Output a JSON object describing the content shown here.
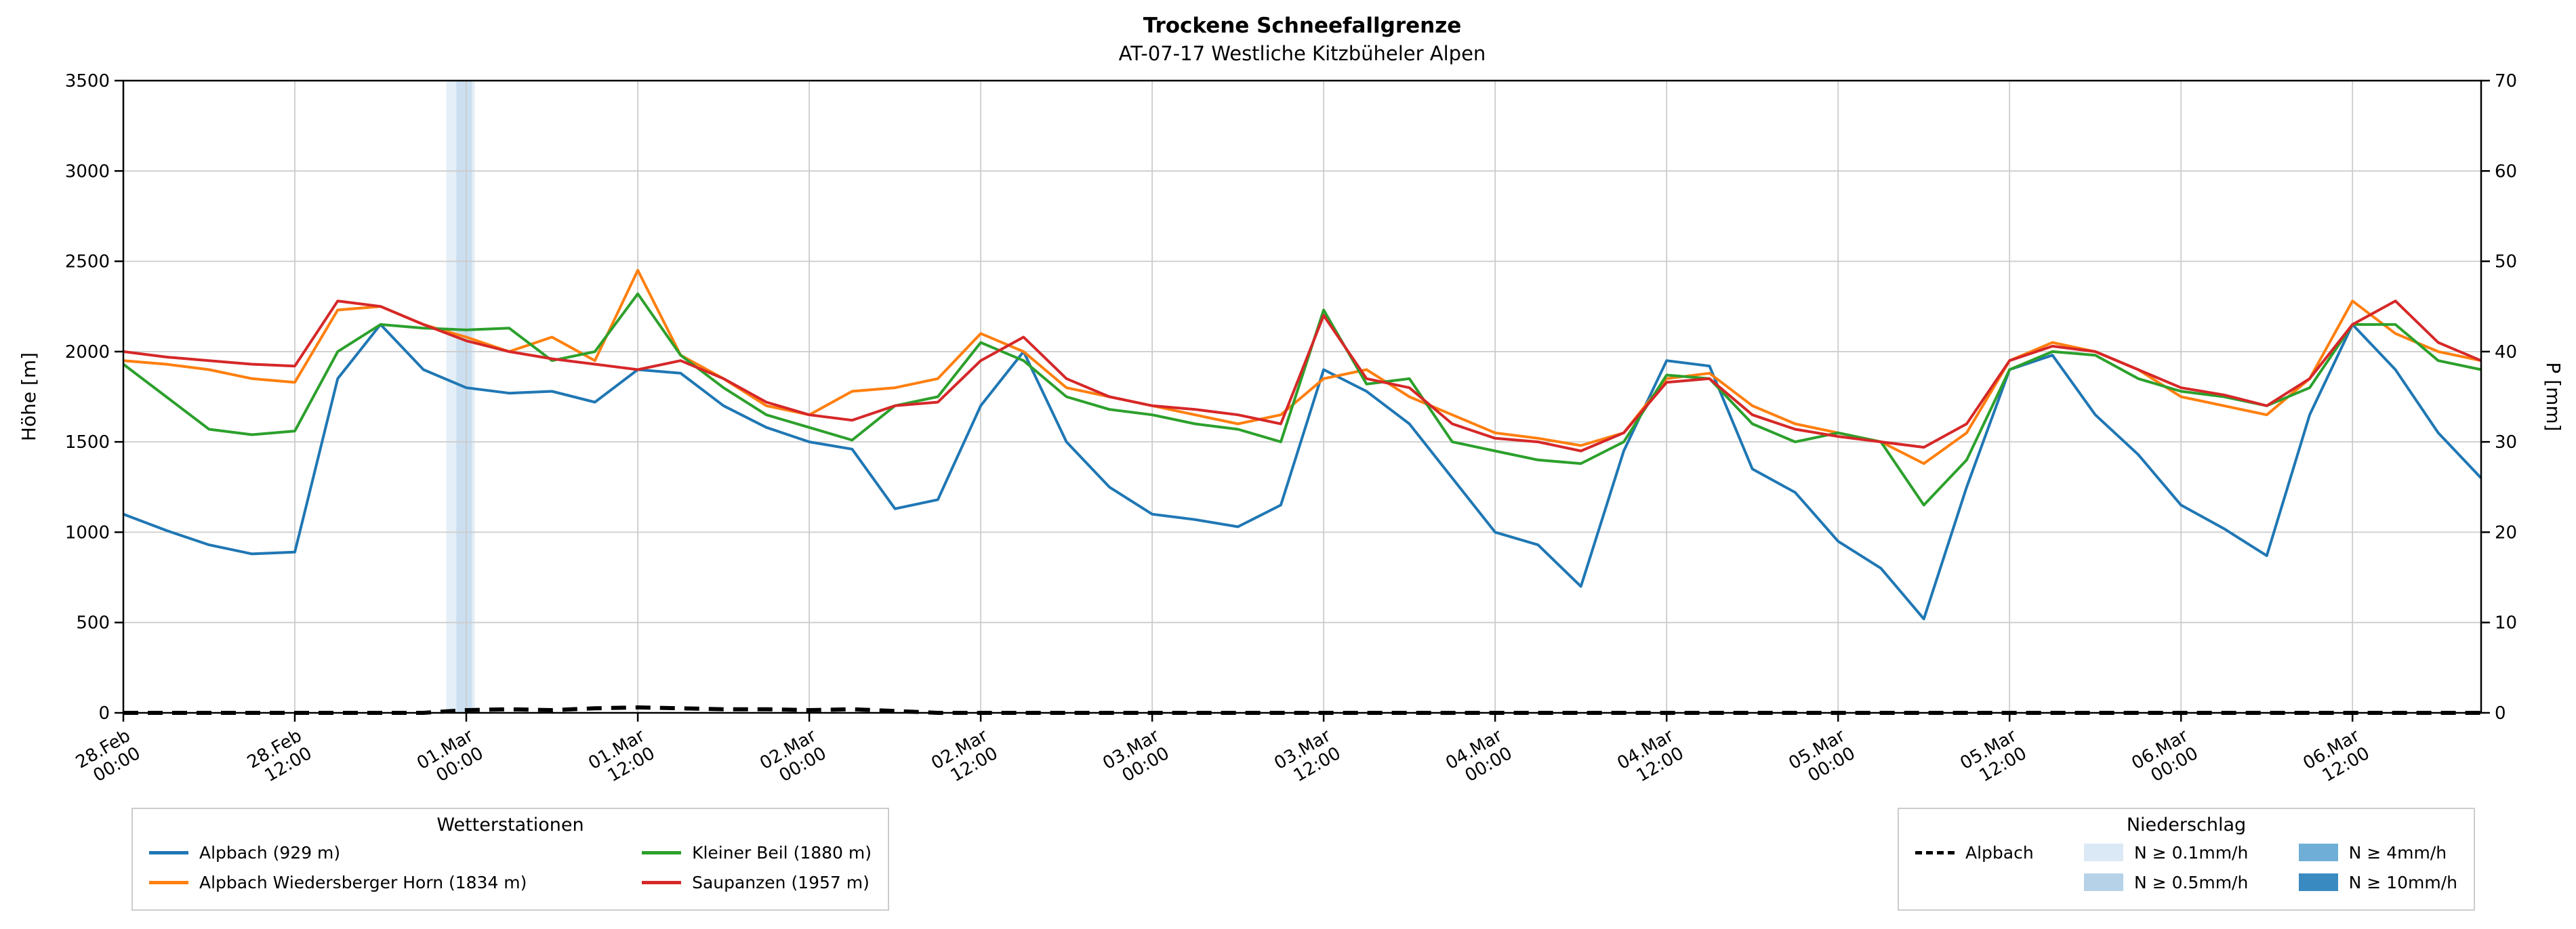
{
  "title": "Trockene Schneefallgrenze",
  "subtitle": "AT-07-17 Westliche Kitzbüheler Alpen",
  "legends": {
    "stations_title": "Wetterstationen",
    "precip_title": "Niederschlag",
    "precip_line_label": "Alpbach",
    "precip_patches": [
      {
        "label": "N ≥ 0.1mm/h",
        "color": "#dbe9f6"
      },
      {
        "label": "N ≥ 0.5mm/h",
        "color": "#b5d2e8"
      },
      {
        "label": "N ≥ 4mm/h",
        "color": "#6fafd7"
      },
      {
        "label": "N ≥ 10mm/h",
        "color": "#3a8ac2"
      }
    ]
  },
  "chart_data": {
    "type": "line",
    "title": "Trockene Schneefallgrenze",
    "subtitle": "AT-07-17 Westliche Kitzbüheler Alpen",
    "ylabel_left": "Höhe [m]",
    "ylabel_right": "P [mm]",
    "ylim_left": [
      0,
      3500
    ],
    "ylim_right": [
      0,
      70
    ],
    "y_left_ticks": [
      0,
      500,
      1000,
      1500,
      2000,
      2500,
      3000,
      3500
    ],
    "y_right_ticks": [
      0,
      10,
      20,
      30,
      40,
      50,
      60,
      70
    ],
    "xlim_hours": [
      0,
      165
    ],
    "x_unit": "hours since 28.Feb 00:00",
    "x_ticks_hours": [
      0,
      12,
      24,
      36,
      48,
      60,
      72,
      84,
      96,
      108,
      120,
      132,
      144,
      156
    ],
    "x_tick_labels": [
      [
        "28.Feb",
        "00:00"
      ],
      [
        "28.Feb",
        "12:00"
      ],
      [
        "01.Mar",
        "00:00"
      ],
      [
        "01.Mar",
        "12:00"
      ],
      [
        "02.Mar",
        "00:00"
      ],
      [
        "02.Mar",
        "12:00"
      ],
      [
        "03.Mar",
        "00:00"
      ],
      [
        "03.Mar",
        "12:00"
      ],
      [
        "04.Mar",
        "00:00"
      ],
      [
        "04.Mar",
        "12:00"
      ],
      [
        "05.Mar",
        "00:00"
      ],
      [
        "05.Mar",
        "12:00"
      ],
      [
        "06.Mar",
        "00:00"
      ],
      [
        "06.Mar",
        "12:00"
      ]
    ],
    "grid": true,
    "x_hours": [
      0,
      3,
      6,
      9,
      12,
      15,
      18,
      21,
      24,
      27,
      30,
      33,
      36,
      39,
      42,
      45,
      48,
      51,
      54,
      57,
      60,
      63,
      66,
      69,
      72,
      75,
      78,
      81,
      84,
      87,
      90,
      93,
      96,
      99,
      102,
      105,
      108,
      111,
      114,
      117,
      120,
      123,
      126,
      129,
      132,
      135,
      138,
      141,
      144,
      147,
      150,
      153,
      156,
      159,
      162,
      165
    ],
    "series": [
      {
        "name": "Alpbach (929 m)",
        "color": "#1f77b4",
        "axis": "left",
        "style": "solid",
        "values": [
          1100,
          1010,
          930,
          880,
          890,
          1850,
          2150,
          1900,
          1800,
          1770,
          1780,
          1720,
          1900,
          1880,
          1700,
          1580,
          1500,
          1460,
          1130,
          1180,
          1700,
          2000,
          1500,
          1250,
          1100,
          1070,
          1030,
          1150,
          1900,
          1780,
          1600,
          1300,
          1000,
          930,
          700,
          1450,
          1950,
          1920,
          1350,
          1220,
          950,
          800,
          520,
          1250,
          1900,
          1980,
          1650,
          1430,
          1150,
          1020,
          870,
          1650,
          2150,
          1900,
          1550,
          1300
        ]
      },
      {
        "name": "Alpbach Wiedersberger Horn (1834 m)",
        "color": "#ff7f0e",
        "axis": "left",
        "style": "solid",
        "values": [
          1950,
          1930,
          1900,
          1850,
          1830,
          2230,
          2250,
          2150,
          2080,
          2000,
          2080,
          1950,
          2450,
          1980,
          1850,
          1700,
          1650,
          1780,
          1800,
          1850,
          2100,
          2000,
          1800,
          1750,
          1700,
          1650,
          1600,
          1650,
          1850,
          1900,
          1750,
          1650,
          1550,
          1520,
          1480,
          1550,
          1850,
          1880,
          1700,
          1600,
          1550,
          1500,
          1380,
          1550,
          1950,
          2050,
          2000,
          1900,
          1750,
          1700,
          1650,
          1850,
          2280,
          2100,
          2000,
          1950
        ]
      },
      {
        "name": "Kleiner Beil (1880 m)",
        "color": "#2ca02c",
        "axis": "left",
        "style": "solid",
        "values": [
          1930,
          1750,
          1570,
          1540,
          1560,
          2000,
          2150,
          2130,
          2120,
          2130,
          1950,
          2000,
          2320,
          1980,
          1800,
          1650,
          1580,
          1510,
          1700,
          1750,
          2050,
          1950,
          1750,
          1680,
          1650,
          1600,
          1570,
          1500,
          2230,
          1820,
          1850,
          1500,
          1450,
          1400,
          1380,
          1500,
          1870,
          1850,
          1600,
          1500,
          1550,
          1500,
          1150,
          1400,
          1900,
          2000,
          1980,
          1850,
          1780,
          1750,
          1700,
          1800,
          2150,
          2150,
          1950,
          1900
        ]
      },
      {
        "name": "Saupanzen (1957 m)",
        "color": "#d62728",
        "axis": "left",
        "style": "solid",
        "values": [
          2000,
          1970,
          1950,
          1930,
          1920,
          2280,
          2250,
          2150,
          2060,
          2000,
          1960,
          1930,
          1900,
          1950,
          1850,
          1720,
          1650,
          1620,
          1700,
          1720,
          1950,
          2080,
          1850,
          1750,
          1700,
          1680,
          1650,
          1600,
          2200,
          1850,
          1800,
          1600,
          1520,
          1500,
          1450,
          1550,
          1830,
          1850,
          1650,
          1570,
          1530,
          1500,
          1470,
          1600,
          1950,
          2030,
          2000,
          1900,
          1800,
          1760,
          1700,
          1850,
          2150,
          2280,
          2050,
          1950
        ]
      },
      {
        "name": "Alpbach",
        "color": "#000000",
        "axis": "right",
        "style": "dashed",
        "values": [
          0,
          0,
          0,
          0,
          0,
          0,
          0,
          0,
          0.3,
          0.4,
          0.3,
          0.5,
          0.6,
          0.5,
          0.4,
          0.4,
          0.3,
          0.4,
          0.2,
          0,
          0,
          0,
          0,
          0,
          0,
          0,
          0,
          0,
          0,
          0,
          0,
          0,
          0,
          0,
          0,
          0,
          0,
          0,
          0,
          0,
          0,
          0,
          0,
          0,
          0,
          0,
          0,
          0,
          0,
          0,
          0,
          0,
          0,
          0,
          0,
          0
        ]
      }
    ],
    "precip_bands": [
      {
        "start_hour": 22.6,
        "end_hour": 24.6,
        "level": "N ≥ 0.1mm/h",
        "color": "#dbe9f6"
      },
      {
        "start_hour": 23.3,
        "end_hour": 24.4,
        "level": "N ≥ 0.5mm/h",
        "color": "#c3daee"
      }
    ]
  }
}
